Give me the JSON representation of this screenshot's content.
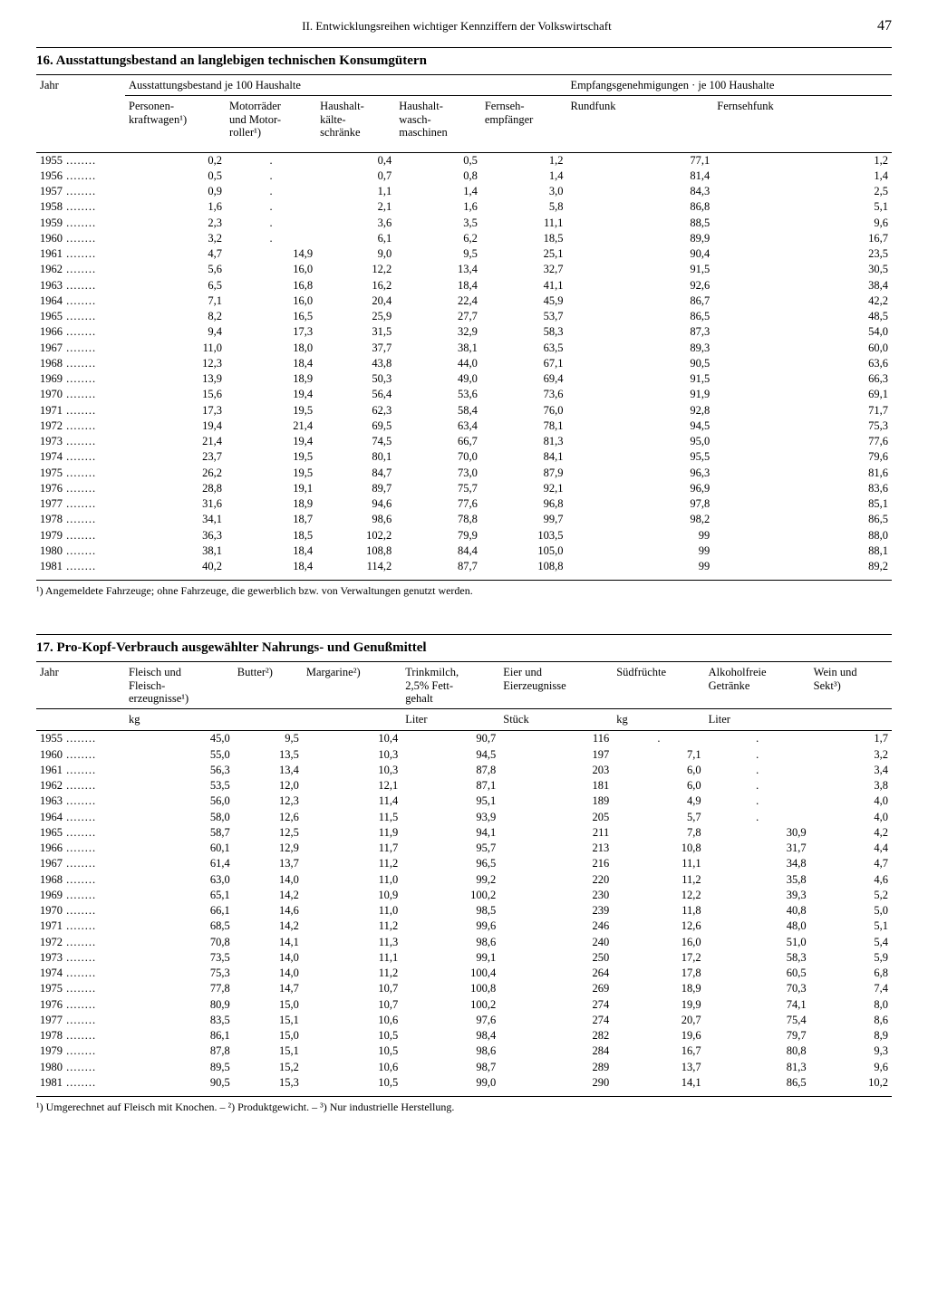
{
  "header": {
    "section": "II. Entwicklungsreihen wichtiger Kennziffern der Volkswirtschaft",
    "page": "47"
  },
  "table16": {
    "title": "16. Ausstattungsbestand an langlebigen technischen Konsumgütern",
    "col_year": "Jahr",
    "group1": "Ausstattungsbestand je 100 Haushalte",
    "group2": "Empfangsgenehmigungen · je 100 Haushalte",
    "cols": {
      "c1": "Personen-\nkraftwagen¹)",
      "c2": "Motorräder\nund Motor-\nroller¹)",
      "c3": "Haushalt-\nkälte-\nschränke",
      "c4": "Haushalt-\nwasch-\nmaschinen",
      "c5": "Fernseh-\nempfänger",
      "c6": "Rundfunk",
      "c7": "Fernsehfunk"
    },
    "rows": [
      [
        "1955",
        "0,2",
        ".",
        "0,4",
        "0,5",
        "1,2",
        "77,1",
        "1,2"
      ],
      [
        "1956",
        "0,5",
        ".",
        "0,7",
        "0,8",
        "1,4",
        "81,4",
        "1,4"
      ],
      [
        "1957",
        "0,9",
        ".",
        "1,1",
        "1,4",
        "3,0",
        "84,3",
        "2,5"
      ],
      [
        "1958",
        "1,6",
        ".",
        "2,1",
        "1,6",
        "5,8",
        "86,8",
        "5,1"
      ],
      [
        "1959",
        "2,3",
        ".",
        "3,6",
        "3,5",
        "11,1",
        "88,5",
        "9,6"
      ],
      [
        "1960",
        "3,2",
        ".",
        "6,1",
        "6,2",
        "18,5",
        "89,9",
        "16,7"
      ],
      [
        "1961",
        "4,7",
        "14,9",
        "9,0",
        "9,5",
        "25,1",
        "90,4",
        "23,5"
      ],
      [
        "1962",
        "5,6",
        "16,0",
        "12,2",
        "13,4",
        "32,7",
        "91,5",
        "30,5"
      ],
      [
        "1963",
        "6,5",
        "16,8",
        "16,2",
        "18,4",
        "41,1",
        "92,6",
        "38,4"
      ],
      [
        "1964",
        "7,1",
        "16,0",
        "20,4",
        "22,4",
        "45,9",
        "86,7",
        "42,2"
      ],
      [
        "1965",
        "8,2",
        "16,5",
        "25,9",
        "27,7",
        "53,7",
        "86,5",
        "48,5"
      ],
      [
        "1966",
        "9,4",
        "17,3",
        "31,5",
        "32,9",
        "58,3",
        "87,3",
        "54,0"
      ],
      [
        "1967",
        "11,0",
        "18,0",
        "37,7",
        "38,1",
        "63,5",
        "89,3",
        "60,0"
      ],
      [
        "1968",
        "12,3",
        "18,4",
        "43,8",
        "44,0",
        "67,1",
        "90,5",
        "63,6"
      ],
      [
        "1969",
        "13,9",
        "18,9",
        "50,3",
        "49,0",
        "69,4",
        "91,5",
        "66,3"
      ],
      [
        "1970",
        "15,6",
        "19,4",
        "56,4",
        "53,6",
        "73,6",
        "91,9",
        "69,1"
      ],
      [
        "1971",
        "17,3",
        "19,5",
        "62,3",
        "58,4",
        "76,0",
        "92,8",
        "71,7"
      ],
      [
        "1972",
        "19,4",
        "21,4",
        "69,5",
        "63,4",
        "78,1",
        "94,5",
        "75,3"
      ],
      [
        "1973",
        "21,4",
        "19,4",
        "74,5",
        "66,7",
        "81,3",
        "95,0",
        "77,6"
      ],
      [
        "1974",
        "23,7",
        "19,5",
        "80,1",
        "70,0",
        "84,1",
        "95,5",
        "79,6"
      ],
      [
        "1975",
        "26,2",
        "19,5",
        "84,7",
        "73,0",
        "87,9",
        "96,3",
        "81,6"
      ],
      [
        "1976",
        "28,8",
        "19,1",
        "89,7",
        "75,7",
        "92,1",
        "96,9",
        "83,6"
      ],
      [
        "1977",
        "31,6",
        "18,9",
        "94,6",
        "77,6",
        "96,8",
        "97,8",
        "85,1"
      ],
      [
        "1978",
        "34,1",
        "18,7",
        "98,6",
        "78,8",
        "99,7",
        "98,2",
        "86,5"
      ],
      [
        "1979",
        "36,3",
        "18,5",
        "102,2",
        "79,9",
        "103,5",
        "99",
        "88,0"
      ],
      [
        "1980",
        "38,1",
        "18,4",
        "108,8",
        "84,4",
        "105,0",
        "99",
        "88,1"
      ],
      [
        "1981",
        "40,2",
        "18,4",
        "114,2",
        "87,7",
        "108,8",
        "99",
        "89,2"
      ]
    ],
    "footnote": "¹) Angemeldete Fahrzeuge; ohne Fahrzeuge, die gewerblich bzw. von Verwaltungen genutzt werden."
  },
  "table17": {
    "title": "17. Pro-Kopf-Verbrauch ausgewählter Nahrungs- und Genußmittel",
    "col_year": "Jahr",
    "cols": {
      "c1": "Fleisch und\nFleisch-\nerzeugnisse¹)",
      "c2": "Butter²)",
      "c3": "Margarine²)",
      "c4": "Trinkmilch,\n2,5% Fett-\ngehalt",
      "c5": "Eier und\nEierzeugnisse",
      "c6": "Südfrüchte",
      "c7": "Alkoholfreie\nGetränke",
      "c8": "Wein und\nSekt³)"
    },
    "units": {
      "u1": "kg",
      "u4": "Liter",
      "u5": "Stück",
      "u6": "kg",
      "u7": "Liter"
    },
    "rows": [
      [
        "1955",
        "45,0",
        "9,5",
        "10,4",
        "90,7",
        "116",
        ".",
        ".",
        "1,7"
      ],
      [
        "1960",
        "55,0",
        "13,5",
        "10,3",
        "94,5",
        "197",
        "7,1",
        ".",
        "3,2"
      ],
      [
        "1961",
        "56,3",
        "13,4",
        "10,3",
        "87,8",
        "203",
        "6,0",
        ".",
        "3,4"
      ],
      [
        "1962",
        "53,5",
        "12,0",
        "12,1",
        "87,1",
        "181",
        "6,0",
        ".",
        "3,8"
      ],
      [
        "1963",
        "56,0",
        "12,3",
        "11,4",
        "95,1",
        "189",
        "4,9",
        ".",
        "4,0"
      ],
      [
        "1964",
        "58,0",
        "12,6",
        "11,5",
        "93,9",
        "205",
        "5,7",
        ".",
        "4,0"
      ],
      [
        "1965",
        "58,7",
        "12,5",
        "11,9",
        "94,1",
        "211",
        "7,8",
        "30,9",
        "4,2"
      ],
      [
        "1966",
        "60,1",
        "12,9",
        "11,7",
        "95,7",
        "213",
        "10,8",
        "31,7",
        "4,4"
      ],
      [
        "1967",
        "61,4",
        "13,7",
        "11,2",
        "96,5",
        "216",
        "11,1",
        "34,8",
        "4,7"
      ],
      [
        "1968",
        "63,0",
        "14,0",
        "11,0",
        "99,2",
        "220",
        "11,2",
        "35,8",
        "4,6"
      ],
      [
        "1969",
        "65,1",
        "14,2",
        "10,9",
        "100,2",
        "230",
        "12,2",
        "39,3",
        "5,2"
      ],
      [
        "1970",
        "66,1",
        "14,6",
        "11,0",
        "98,5",
        "239",
        "11,8",
        "40,8",
        "5,0"
      ],
      [
        "1971",
        "68,5",
        "14,2",
        "11,2",
        "99,6",
        "246",
        "12,6",
        "48,0",
        "5,1"
      ],
      [
        "1972",
        "70,8",
        "14,1",
        "11,3",
        "98,6",
        "240",
        "16,0",
        "51,0",
        "5,4"
      ],
      [
        "1973",
        "73,5",
        "14,0",
        "11,1",
        "99,1",
        "250",
        "17,2",
        "58,3",
        "5,9"
      ],
      [
        "1974",
        "75,3",
        "14,0",
        "11,2",
        "100,4",
        "264",
        "17,8",
        "60,5",
        "6,8"
      ],
      [
        "1975",
        "77,8",
        "14,7",
        "10,7",
        "100,8",
        "269",
        "18,9",
        "70,3",
        "7,4"
      ],
      [
        "1976",
        "80,9",
        "15,0",
        "10,7",
        "100,2",
        "274",
        "19,9",
        "74,1",
        "8,0"
      ],
      [
        "1977",
        "83,5",
        "15,1",
        "10,6",
        "97,6",
        "274",
        "20,7",
        "75,4",
        "8,6"
      ],
      [
        "1978",
        "86,1",
        "15,0",
        "10,5",
        "98,4",
        "282",
        "19,6",
        "79,7",
        "8,9"
      ],
      [
        "1979",
        "87,8",
        "15,1",
        "10,5",
        "98,6",
        "284",
        "16,7",
        "80,8",
        "9,3"
      ],
      [
        "1980",
        "89,5",
        "15,2",
        "10,6",
        "98,7",
        "289",
        "13,7",
        "81,3",
        "9,6"
      ],
      [
        "1981",
        "90,5",
        "15,3",
        "10,5",
        "99,0",
        "290",
        "14,1",
        "86,5",
        "10,2"
      ]
    ],
    "footnote": "¹) Umgerechnet auf Fleisch mit Knochen. – ²) Produktgewicht. – ³) Nur industrielle Herstellung."
  }
}
